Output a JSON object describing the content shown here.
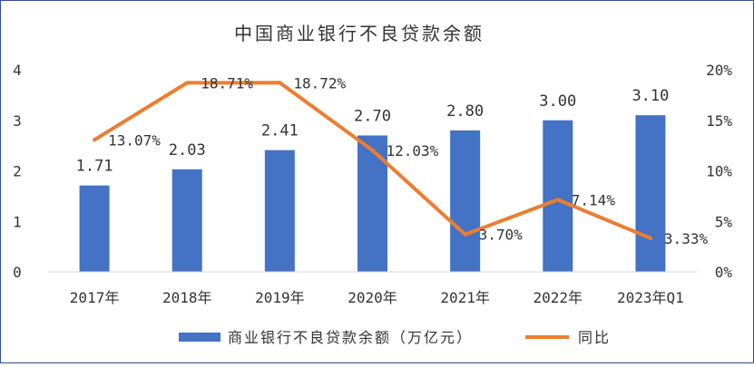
{
  "chart_data": {
    "type": "bar",
    "title": "中国商业银行不良贷款余额",
    "categories": [
      "2017年",
      "2018年",
      "2019年",
      "2020年",
      "2021年",
      "2022年",
      "2023年Q1"
    ],
    "series": [
      {
        "name": "商业银行不良贷款余额（万亿元）",
        "type": "bar",
        "axis": "left",
        "values": [
          1.71,
          2.03,
          2.41,
          2.7,
          2.8,
          3.0,
          3.1
        ],
        "labels": [
          "1.71",
          "2.03",
          "2.41",
          "2.70",
          "2.80",
          "3.00",
          "3.10"
        ],
        "color": "#4472c4"
      },
      {
        "name": "同比",
        "type": "line",
        "axis": "right",
        "values": [
          13.07,
          18.71,
          18.72,
          12.03,
          3.7,
          7.14,
          3.33
        ],
        "labels": [
          "13.07%",
          "18.71%",
          "18.72%",
          "12.03%",
          "3.70%",
          "7.14%",
          "3.33%"
        ],
        "color": "#ed7d31"
      }
    ],
    "y_left": {
      "ylim": [
        0,
        4
      ],
      "ticks": [
        "0",
        "1",
        "2",
        "3",
        "4"
      ]
    },
    "y_right": {
      "ylim": [
        0,
        20
      ],
      "ticks": [
        "0%",
        "5%",
        "10%",
        "15%",
        "20%"
      ]
    },
    "grid": false,
    "legend_position": "bottom"
  }
}
